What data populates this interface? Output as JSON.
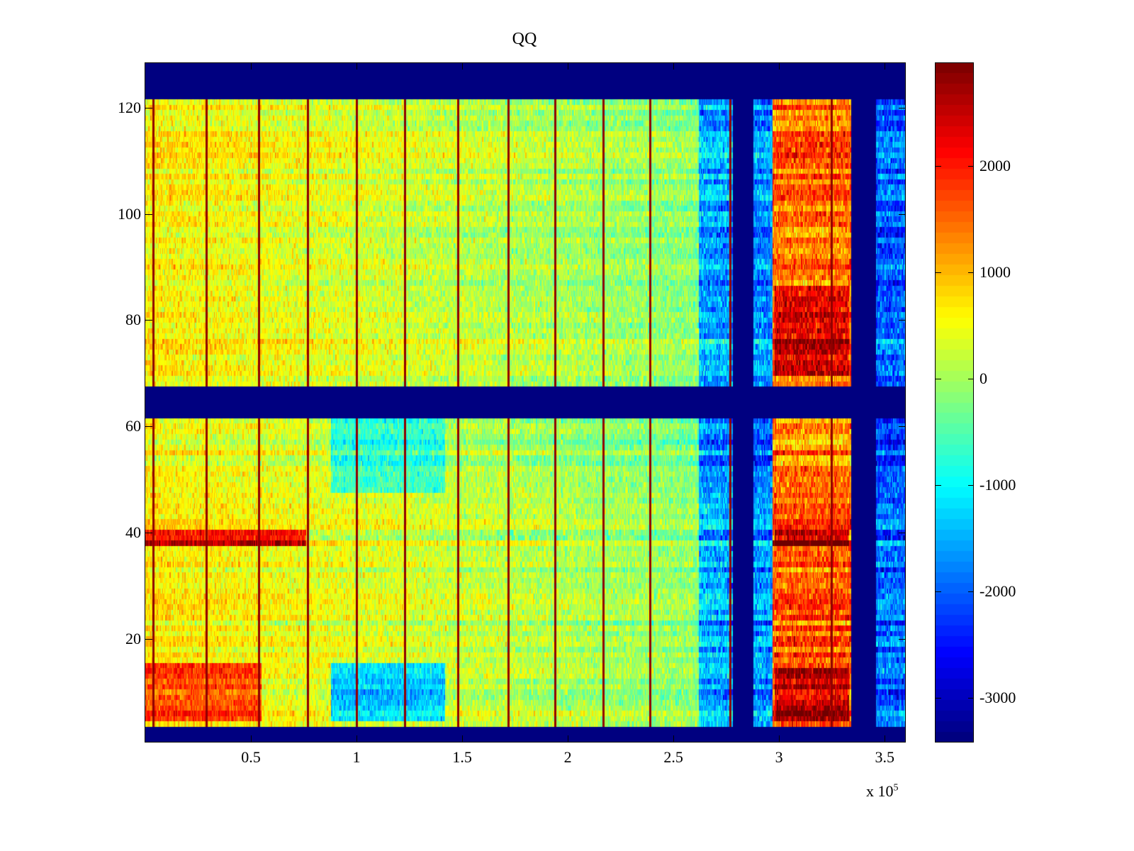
{
  "chart_data": {
    "type": "heatmap",
    "title": "QQ",
    "xlabel": "",
    "ylabel": "",
    "x_multiplier_label": "x 10",
    "x_multiplier_exponent": "5",
    "xlim": [
      0,
      360000
    ],
    "ylim": [
      0.5,
      128.5
    ],
    "clim": [
      -3420,
      2973
    ],
    "colormap": "jet",
    "x_ticks": [
      50000,
      100000,
      150000,
      200000,
      250000,
      300000,
      350000
    ],
    "x_tick_labels": [
      "0.5",
      "1",
      "1.5",
      "2",
      "2.5",
      "3",
      "3.5"
    ],
    "y_ticks": [
      20,
      40,
      60,
      80,
      100,
      120
    ],
    "y_tick_labels": [
      "20",
      "40",
      "60",
      "80",
      "100",
      "120"
    ],
    "colorbar_ticks": [
      -3000,
      -2000,
      -1000,
      0,
      1000,
      2000
    ],
    "colorbar_tick_labels": [
      "-3000",
      "-2000",
      "-1000",
      "0",
      "1000",
      "2000"
    ],
    "colorbar_location": "right",
    "background_value": -3420,
    "data_row_bands": [
      [
        4,
        61
      ],
      [
        68,
        121
      ]
    ],
    "column_segments": [
      {
        "x_start": 0,
        "x_end": 262000,
        "value_start": 650,
        "value_end": -150
      },
      {
        "x_start": 262000,
        "x_end": 278000,
        "value_start": -1500,
        "value_end": -1600
      },
      {
        "x_start": 288000,
        "x_end": 297000,
        "value_start": -1700,
        "value_end": -1700
      },
      {
        "x_start": 297000,
        "x_end": 334000,
        "value_start": 1500,
        "value_end": 1500
      },
      {
        "x_start": 346000,
        "x_end": 360000,
        "value_start": -2000,
        "value_end": -2000
      }
    ],
    "vertical_stripes_x": [
      4000,
      29000,
      54000,
      77000,
      100000,
      123000,
      148000,
      172000,
      194000,
      217000,
      239000,
      277000,
      325000
    ],
    "vertical_stripe_value": 2800,
    "anomalies": [
      {
        "rows": [
          38,
          40
        ],
        "x_start": 0,
        "x_end": 76000,
        "value": 2300
      },
      {
        "rows": [
          38,
          40
        ],
        "x_start": 298000,
        "x_end": 333000,
        "value": 2900
      },
      {
        "rows": [
          5,
          15
        ],
        "x_start": 0,
        "x_end": 55000,
        "value": 1700
      },
      {
        "rows": [
          5,
          15
        ],
        "x_start": 88000,
        "x_end": 142000,
        "value": -1300
      },
      {
        "rows": [
          48,
          61
        ],
        "x_start": 88000,
        "x_end": 142000,
        "value": -600
      },
      {
        "rows": [
          5,
          14
        ],
        "x_start": 298000,
        "x_end": 333000,
        "value": 2500
      },
      {
        "rows": [
          70,
          86
        ],
        "x_start": 298000,
        "x_end": 333000,
        "value": 2300
      }
    ]
  }
}
